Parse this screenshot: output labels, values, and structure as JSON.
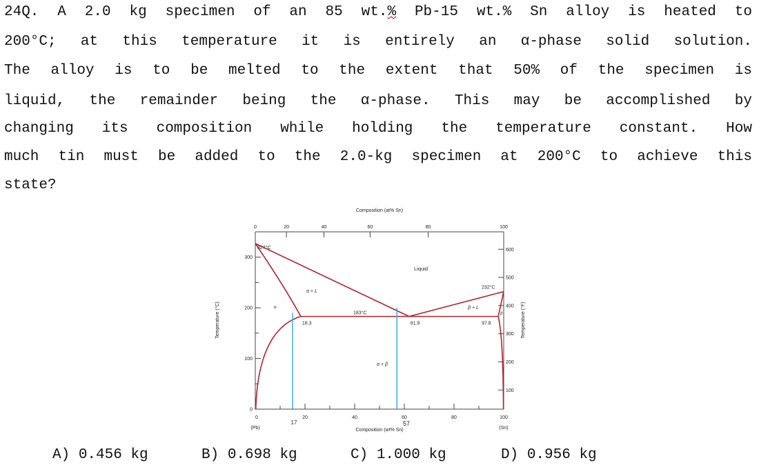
{
  "question": {
    "line1": {
      "a": "24Q. A 2.0 kg specimen of an 85 wt.",
      "pct": "%",
      "b": " Pb-15 wt.% Sn alloy is heated to"
    },
    "lines": [
      "200°C; at this temperature it is entirely an α-phase solid solution.",
      "The alloy is to be melted to the extent that 50% of the specimen is",
      "liquid, the remainder being the α-phase. This may be accomplished by",
      "changing its composition while holding the temperature constant. How",
      "much tin must be added to the 2.0-kg specimen at 200°C to achieve this",
      "state?"
    ]
  },
  "chart_data": {
    "type": "phase-diagram",
    "title": "Composition (at% Sn)",
    "xlabel": "Composition (wt% Sn)",
    "ylabel_left": "Temperature (°C)",
    "ylabel_right": "Temperature (°F)",
    "xlim": [
      0,
      100
    ],
    "ylim_c": [
      0,
      350
    ],
    "top_ticks": [
      0,
      20,
      40,
      60,
      80,
      100
    ],
    "bottom_ticks": [
      "0",
      "20",
      "40",
      "60",
      "80",
      "100"
    ],
    "bottom_end_labels": {
      "left": "(Pb)",
      "right": "(Sn)"
    },
    "left_ticks": [
      "0",
      "100",
      "200",
      "300"
    ],
    "right_ticks_f": [
      600,
      500,
      400,
      300,
      200,
      100
    ],
    "special_x_label": "57",
    "special_x_label2": "17",
    "points": {
      "pb_melt": {
        "x": 0,
        "y": 327,
        "label": "327°C"
      },
      "sn_melt": {
        "x": 100,
        "y": 232,
        "label": "232°C"
      },
      "eutectic": {
        "x": 61.9,
        "y": 183,
        "label": "183°C"
      },
      "alpha_limit": {
        "x": 18.3,
        "y": 183,
        "label": "18.3"
      },
      "eutectic_comp_label": "61.9",
      "beta_limit": {
        "x": 97.8,
        "y": 183,
        "label": "97.8"
      }
    },
    "regions": {
      "liquid": "Liquid",
      "alpha_l": "α + L",
      "beta_l": "β + L",
      "alpha_beta": "α + β",
      "alpha": "α",
      "beta": "β"
    },
    "lines_wt": {
      "alloy": 15,
      "target": 57
    },
    "colors": {
      "boundary": "#b2222a",
      "marker": "#2aa8e0",
      "axis": "#444444"
    }
  },
  "options": [
    {
      "letter": "A)",
      "value": "0.456 kg"
    },
    {
      "letter": "B)",
      "value": "0.698 kg"
    },
    {
      "letter": "C)",
      "value": "1.000 kg"
    },
    {
      "letter": "D)",
      "value": "0.956 kg"
    }
  ]
}
